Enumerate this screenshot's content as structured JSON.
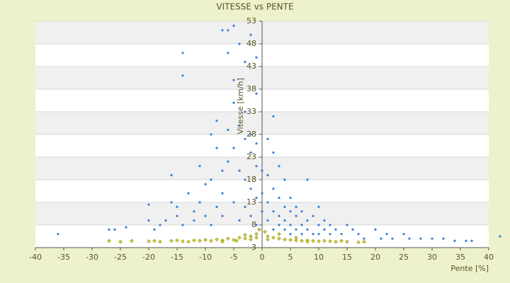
{
  "chart_data": {
    "type": "scatter",
    "title": "VITESSE vs PENTE",
    "x_label": "Pente [%]",
    "y_label": "Vitesse [km/h]",
    "xlim": [
      -40,
      40
    ],
    "xticks": [
      -40,
      -35,
      -30,
      -25,
      -20,
      -15,
      -10,
      -5,
      0,
      5,
      10,
      15,
      20,
      25,
      30,
      35,
      40
    ],
    "ylim": [
      3,
      53
    ],
    "yticks": [
      3,
      8,
      13,
      18,
      23,
      28,
      33,
      38,
      43,
      48,
      53
    ],
    "grid": true,
    "series": [
      {
        "color": "#3a80d2",
        "x": [
          -36,
          -27,
          -26,
          -24,
          -20,
          -20,
          -19,
          -18,
          -17,
          -16,
          -16,
          -15,
          -15,
          -14,
          -14,
          -14,
          -13,
          -12,
          -12,
          -11,
          -11,
          -10,
          -10,
          -9,
          -9,
          -9,
          -8,
          -8,
          -8,
          -7,
          -7,
          -7,
          -7,
          -6,
          -6,
          -6,
          -6,
          -5,
          -5,
          -5,
          -5,
          -5,
          -4,
          -4,
          -4,
          -4,
          -3,
          -3,
          -3,
          -3,
          -3,
          -2,
          -2,
          -2,
          -2,
          -2,
          -1,
          -1,
          -1,
          -1,
          -1,
          -1,
          0,
          0,
          0,
          1,
          1,
          1,
          1,
          2,
          2,
          2,
          2,
          2,
          3,
          3,
          3,
          3,
          4,
          4,
          4,
          4,
          5,
          5,
          5,
          5,
          6,
          6,
          6,
          7,
          7,
          7,
          8,
          8,
          8,
          9,
          9,
          10,
          10,
          10,
          11,
          11,
          12,
          12,
          13,
          14,
          15,
          16,
          17,
          18,
          20,
          21,
          22,
          23,
          25,
          26,
          28,
          30,
          32,
          34,
          36,
          37,
          42
        ],
        "values": [
          6,
          7,
          7,
          7.5,
          9,
          12.5,
          7,
          8,
          9,
          19,
          13,
          12,
          10,
          8,
          46,
          41,
          15,
          11,
          9,
          21,
          13,
          17,
          10,
          8,
          18,
          28,
          25,
          12,
          31,
          20,
          15,
          10,
          51,
          51,
          46,
          22,
          29,
          52,
          40,
          35,
          25,
          13,
          48,
          30,
          20,
          9,
          44,
          33,
          27,
          18,
          12,
          50,
          28,
          24,
          16,
          10,
          45,
          37,
          26,
          21,
          14,
          8,
          20,
          15,
          11,
          27,
          19,
          13,
          9,
          32,
          24,
          16,
          11,
          7,
          21,
          14,
          10,
          8,
          18,
          12,
          9,
          7,
          14,
          11,
          8,
          6,
          12,
          10,
          7,
          11,
          8,
          6,
          18,
          9,
          7,
          10,
          6,
          12,
          8,
          6,
          9,
          7,
          8,
          6,
          7,
          6,
          8,
          7,
          6,
          5,
          7,
          5,
          6,
          5,
          6,
          5,
          5,
          5,
          5,
          4.5,
          4.5,
          4.5,
          5.5
        ]
      },
      {
        "color": "#c9c934",
        "x": [
          -27,
          -25,
          -23,
          -20,
          -18,
          -16,
          -14,
          -12,
          -11,
          -10,
          -9,
          -8,
          -7,
          -6,
          -5,
          -4,
          -3,
          -2,
          -2,
          -1,
          -1,
          -0.5,
          0.5,
          1,
          1,
          2,
          3,
          4,
          5,
          6,
          7,
          8,
          9,
          10,
          11,
          12,
          13,
          14,
          15,
          17,
          18,
          -13,
          -15,
          -19,
          3,
          -3,
          -4.5,
          6,
          8,
          -7
        ],
        "values": [
          4.5,
          4.3,
          4.5,
          4.4,
          4.3,
          4.5,
          4.4,
          4.6,
          4.5,
          4.7,
          4.5,
          4.8,
          4.6,
          5,
          4.7,
          5.2,
          5,
          5.5,
          4.8,
          6,
          5.2,
          7,
          6.5,
          5.5,
          4.8,
          5.2,
          5,
          4.8,
          4.7,
          4.6,
          4.5,
          4.6,
          4.5,
          4.4,
          4.5,
          4.4,
          4.3,
          4.5,
          4.3,
          4.2,
          4.3,
          4.3,
          4.6,
          4.5,
          6,
          5.8,
          4.5,
          5.2,
          4.3,
          4.3
        ]
      }
    ]
  }
}
